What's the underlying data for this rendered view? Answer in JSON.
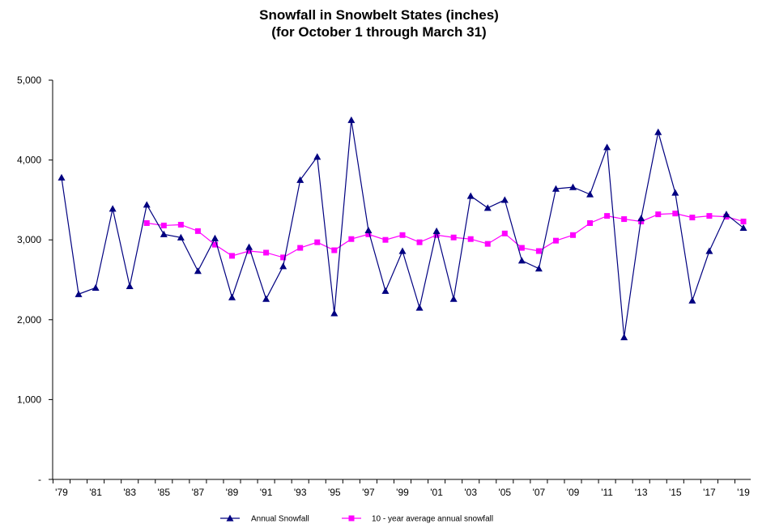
{
  "chart_data": {
    "type": "line",
    "title": "Snowfall in Snowbelt States (inches)",
    "subtitle": "(for October 1 through March 31)",
    "xlabel": "",
    "ylabel": "",
    "ylim": [
      0,
      5000
    ],
    "yticks": [
      0,
      1000,
      2000,
      3000,
      4000,
      5000
    ],
    "ytick_labels": [
      "-",
      "1,000",
      "2,000",
      "3,000",
      "4,000",
      "5,000"
    ],
    "x": [
      1979,
      1980,
      1981,
      1982,
      1983,
      1984,
      1985,
      1986,
      1987,
      1988,
      1989,
      1990,
      1991,
      1992,
      1993,
      1994,
      1995,
      1996,
      1997,
      1998,
      1999,
      2000,
      2001,
      2002,
      2003,
      2004,
      2005,
      2006,
      2007,
      2008,
      2009,
      2010,
      2011,
      2012,
      2013,
      2014,
      2015,
      2016,
      2017,
      2018,
      2019
    ],
    "xtick_years": [
      1979,
      1981,
      1983,
      1985,
      1987,
      1989,
      1991,
      1993,
      1995,
      1997,
      1999,
      2001,
      2003,
      2005,
      2007,
      2009,
      2011,
      2013,
      2015,
      2017,
      2019
    ],
    "xtick_labels": [
      "'79",
      "'81",
      "'83",
      "'85",
      "'87",
      "'89",
      "'91",
      "'93",
      "'95",
      "'97",
      "'99",
      "'01",
      "'03",
      "'05",
      "'07",
      "'09",
      "'11",
      "'13",
      "'15",
      "'17",
      "'19"
    ],
    "grid": false,
    "legend_position": "bottom",
    "series": [
      {
        "name": "Annual Snowfall",
        "color": "#000080",
        "marker": "triangle",
        "values": [
          3780,
          2320,
          2400,
          3390,
          2420,
          3440,
          3070,
          3030,
          2610,
          3020,
          2280,
          2910,
          2260,
          2670,
          3750,
          4040,
          2080,
          4500,
          3120,
          2360,
          2860,
          2150,
          3110,
          2260,
          3550,
          3400,
          3500,
          2740,
          2640,
          3640,
          3660,
          3570,
          4160,
          1780,
          3270,
          4350,
          3590,
          2240,
          2860,
          3320,
          3150
        ]
      },
      {
        "name": "10 - year average annual snowfall",
        "color": "#ff00ff",
        "marker": "square",
        "values": [
          null,
          null,
          null,
          null,
          null,
          3210,
          3180,
          3190,
          3110,
          2940,
          2800,
          2860,
          2840,
          2780,
          2900,
          2970,
          2870,
          3010,
          3070,
          3000,
          3060,
          2970,
          3060,
          3030,
          3010,
          2950,
          3080,
          2900,
          2860,
          2990,
          3060,
          3210,
          3300,
          3260,
          3230,
          3320,
          3330,
          3280,
          3300,
          3290,
          3230
        ]
      }
    ]
  }
}
